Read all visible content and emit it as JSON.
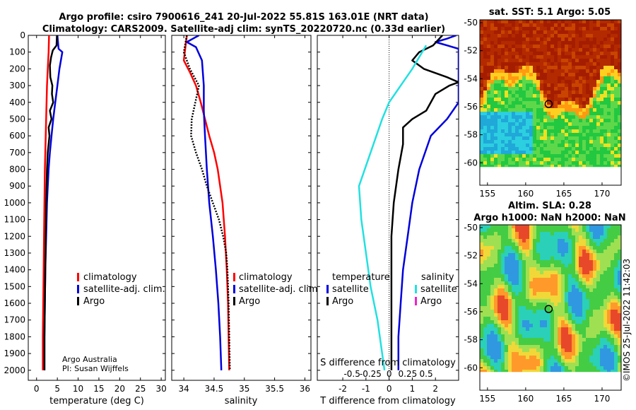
{
  "title": {
    "line1": "Argo profile: csiro 7900616_241 20-Jul-2022 55.81S 163.01E (NRT data)",
    "line2": "Climatology: CARS2009. Satellite-adj clim: synTS_20220720.nc (0.33d earlier)"
  },
  "credit": {
    "line1": "Argo Australia",
    "line2": "PI: Susan Wijffels"
  },
  "copyright": "©IMOS 25-Jul-2022 11:42:03",
  "colors": {
    "red": "#ff0000",
    "blue": "#0000dd",
    "black": "#000000",
    "cyan": "#22e0e0",
    "magenta": "#ee22cc"
  },
  "chart_data": [
    {
      "type": "line",
      "id": "temp",
      "xlabel": "temperature (deg C)",
      "xlim": [
        -2,
        31
      ],
      "xticks": [
        0,
        5,
        10,
        15,
        20,
        25,
        30
      ],
      "xticklabels": [
        "0",
        "5",
        "10",
        "15",
        "20",
        "25",
        "30"
      ],
      "ylim": [
        2060,
        0
      ],
      "yticks": [
        0,
        100,
        200,
        300,
        400,
        500,
        600,
        700,
        800,
        900,
        1000,
        1100,
        1200,
        1300,
        1400,
        1500,
        1600,
        1700,
        1800,
        1900,
        2000
      ],
      "legend": [
        "climatology",
        "satellite-adj. clim.",
        "Argo"
      ],
      "series": [
        {
          "name": "climatology",
          "color": "red",
          "dash": false,
          "points": [
            [
              3.0,
              0
            ],
            [
              2.9,
              100
            ],
            [
              2.7,
              200
            ],
            [
              2.5,
              300
            ],
            [
              2.4,
              400
            ],
            [
              2.3,
              500
            ],
            [
              2.2,
              600
            ],
            [
              2.1,
              700
            ],
            [
              2.0,
              800
            ],
            [
              1.95,
              900
            ],
            [
              1.9,
              1000
            ],
            [
              1.8,
              1200
            ],
            [
              1.7,
              1400
            ],
            [
              1.6,
              1600
            ],
            [
              1.5,
              1800
            ],
            [
              1.5,
              2000
            ]
          ]
        },
        {
          "name": "satellite-adj. clim.",
          "color": "blue",
          "dash": false,
          "points": [
            [
              5.0,
              0
            ],
            [
              5.3,
              80
            ],
            [
              6.2,
              100
            ],
            [
              5.5,
              200
            ],
            [
              5.0,
              300
            ],
            [
              4.5,
              400
            ],
            [
              4.0,
              500
            ],
            [
              3.6,
              600
            ],
            [
              3.2,
              700
            ],
            [
              2.9,
              800
            ],
            [
              2.7,
              900
            ],
            [
              2.5,
              1000
            ],
            [
              2.3,
              1200
            ],
            [
              2.1,
              1400
            ],
            [
              2.0,
              1600
            ],
            [
              1.9,
              1800
            ],
            [
              1.9,
              2000
            ]
          ]
        },
        {
          "name": "Argo",
          "color": "black",
          "dash": false,
          "points": [
            [
              4.9,
              0
            ],
            [
              4.8,
              60
            ],
            [
              3.9,
              90
            ],
            [
              3.5,
              130
            ],
            [
              3.2,
              180
            ],
            [
              3.3,
              250
            ],
            [
              3.8,
              300
            ],
            [
              3.7,
              350
            ],
            [
              4.0,
              400
            ],
            [
              3.2,
              450
            ],
            [
              3.6,
              500
            ],
            [
              2.9,
              550
            ],
            [
              3.1,
              600
            ],
            [
              2.7,
              700
            ],
            [
              2.5,
              800
            ],
            [
              2.4,
              900
            ],
            [
              2.3,
              1000
            ],
            [
              2.2,
              1200
            ],
            [
              2.1,
              1400
            ],
            [
              2.0,
              1600
            ],
            [
              1.9,
              1800
            ],
            [
              1.9,
              2000
            ]
          ]
        }
      ]
    },
    {
      "type": "line",
      "id": "sal",
      "xlabel": "salinity",
      "xlim": [
        33.8,
        36.1
      ],
      "xticks": [
        34,
        34.5,
        35,
        35.5,
        36
      ],
      "xticklabels": [
        "34",
        "34.5",
        "35",
        "35.5",
        "36"
      ],
      "ylim": [
        2060,
        0
      ],
      "yticks": [
        0,
        100,
        200,
        300,
        400,
        500,
        600,
        700,
        800,
        900,
        1000,
        1100,
        1200,
        1300,
        1400,
        1500,
        1600,
        1700,
        1800,
        1900,
        2000
      ],
      "legend": [
        "climatology",
        "satellite-adj. clim.",
        "Argo"
      ],
      "series": [
        {
          "name": "climatology",
          "color": "red",
          "dash": false,
          "points": [
            [
              34.05,
              0
            ],
            [
              34.0,
              150
            ],
            [
              34.1,
              220
            ],
            [
              34.2,
              300
            ],
            [
              34.28,
              400
            ],
            [
              34.35,
              500
            ],
            [
              34.42,
              600
            ],
            [
              34.5,
              700
            ],
            [
              34.56,
              800
            ],
            [
              34.6,
              900
            ],
            [
              34.64,
              1000
            ],
            [
              34.68,
              1200
            ],
            [
              34.71,
              1400
            ],
            [
              34.73,
              1600
            ],
            [
              34.74,
              1800
            ],
            [
              34.75,
              2000
            ]
          ]
        },
        {
          "name": "satellite-adj. clim.",
          "color": "blue",
          "dash": false,
          "points": [
            [
              34.25,
              0
            ],
            [
              34.15,
              20
            ],
            [
              34.05,
              40
            ],
            [
              34.2,
              70
            ],
            [
              34.3,
              150
            ],
            [
              34.33,
              300
            ],
            [
              34.33,
              450
            ],
            [
              34.35,
              600
            ],
            [
              34.38,
              800
            ],
            [
              34.42,
              1000
            ],
            [
              34.48,
              1200
            ],
            [
              34.53,
              1400
            ],
            [
              34.57,
              1600
            ],
            [
              34.6,
              1800
            ],
            [
              34.62,
              2000
            ]
          ]
        },
        {
          "name": "Argo",
          "color": "black",
          "dash": true,
          "points": [
            [
              34.05,
              0
            ],
            [
              34.0,
              100
            ],
            [
              34.1,
              200
            ],
            [
              34.25,
              300
            ],
            [
              34.22,
              350
            ],
            [
              34.13,
              500
            ],
            [
              34.12,
              600
            ],
            [
              34.2,
              700
            ],
            [
              34.3,
              800
            ],
            [
              34.38,
              900
            ],
            [
              34.48,
              1000
            ],
            [
              34.58,
              1100
            ],
            [
              34.65,
              1200
            ],
            [
              34.7,
              1300
            ],
            [
              34.72,
              1400
            ],
            [
              34.74,
              1600
            ],
            [
              34.75,
              1800
            ],
            [
              34.76,
              2000
            ]
          ]
        }
      ]
    },
    {
      "type": "line",
      "id": "diff",
      "xlabel": "T difference from climatology",
      "xlim": [
        -3.1,
        3.0
      ],
      "xticks": [
        -2,
        -1,
        0,
        1,
        2
      ],
      "xticklabels": [
        "-2",
        "-1",
        "0",
        "1",
        "2"
      ],
      "secondary_xlabel": "S difference from climatology",
      "secondary_ticklabels": [
        "-0.5",
        "-0.25",
        "0",
        "0.25",
        "0.5"
      ],
      "ylim": [
        2060,
        0
      ],
      "zero_line": true,
      "legend_temperature_title": "temperature",
      "legend_salinity_title": "salinity",
      "legend_temperature": [
        "satellite",
        "Argo"
      ],
      "legend_salinity": [
        "satellite",
        "Argo"
      ],
      "series": [
        {
          "name": "temperature satellite",
          "color": "blue",
          "dash": false,
          "points": [
            [
              2.9,
              0
            ],
            [
              2.5,
              20
            ],
            [
              2.0,
              40
            ],
            [
              3.0,
              80
            ],
            [
              3.0,
              150
            ],
            [
              3.0,
              300
            ],
            [
              3.0,
              400
            ],
            [
              2.5,
              500
            ],
            [
              1.8,
              600
            ],
            [
              1.3,
              800
            ],
            [
              1.0,
              1000
            ],
            [
              0.8,
              1200
            ],
            [
              0.6,
              1400
            ],
            [
              0.5,
              1600
            ],
            [
              0.4,
              1800
            ],
            [
              0.4,
              2000
            ]
          ]
        },
        {
          "name": "temperature Argo",
          "color": "black",
          "dash": false,
          "points": [
            [
              2.3,
              0
            ],
            [
              1.9,
              60
            ],
            [
              1.3,
              100
            ],
            [
              1.0,
              150
            ],
            [
              1.5,
              200
            ],
            [
              2.5,
              250
            ],
            [
              3.0,
              280
            ],
            [
              2.6,
              300
            ],
            [
              2.0,
              350
            ],
            [
              1.6,
              450
            ],
            [
              1.0,
              500
            ],
            [
              0.6,
              550
            ],
            [
              0.6,
              650
            ],
            [
              0.4,
              800
            ],
            [
              0.3,
              900
            ],
            [
              0.2,
              1000
            ],
            [
              0.1,
              1200
            ],
            [
              0.1,
              1400
            ],
            [
              0.1,
              1600
            ],
            [
              0.1,
              1800
            ],
            [
              0.1,
              2000
            ]
          ]
        },
        {
          "name": "salinity satellite",
          "color": "cyan",
          "dash": false,
          "points": [
            [
              1.6,
              60
            ],
            [
              1.0,
              200
            ],
            [
              0.5,
              300
            ],
            [
              0.0,
              400
            ],
            [
              -0.3,
              500
            ],
            [
              -0.8,
              700
            ],
            [
              -1.3,
              900
            ],
            [
              -1.2,
              1100
            ],
            [
              -1.0,
              1300
            ],
            [
              -0.8,
              1500
            ],
            [
              -0.5,
              1700
            ],
            [
              -0.3,
              1900
            ],
            [
              -0.2,
              2000
            ]
          ]
        }
      ]
    },
    {
      "type": "heatmap",
      "id": "sst",
      "title": "sat. SST: 5.1 Argo: 5.05",
      "xlim": [
        154,
        172.5
      ],
      "ylim": [
        -61.6,
        -49.8
      ],
      "xticks": [
        155,
        160,
        165,
        170
      ],
      "xticklabels": [
        "155",
        "160",
        "165",
        "170"
      ],
      "yticks": [
        -50,
        -52,
        -54,
        -56,
        -58,
        -60
      ],
      "yticklabels": [
        "-50",
        "-52",
        "-54",
        "-56",
        "-58",
        "-60"
      ],
      "marker": [
        163.01,
        -55.81
      ]
    },
    {
      "type": "heatmap",
      "id": "sla",
      "title_line1": "Altim. SLA: 0.28",
      "title_line2": "Argo h1000: NaN h2000: NaN",
      "xlim": [
        154,
        172.5
      ],
      "ylim": [
        -61.6,
        -49.8
      ],
      "xticks": [
        155,
        160,
        165,
        170
      ],
      "xticklabels": [
        "155",
        "160",
        "165",
        "170"
      ],
      "yticks": [
        -50,
        -52,
        -54,
        -56,
        -58,
        -60
      ],
      "yticklabels": [
        "-50",
        "-52",
        "-54",
        "-56",
        "-58",
        "-60"
      ],
      "marker": [
        163.01,
        -55.81
      ]
    }
  ]
}
